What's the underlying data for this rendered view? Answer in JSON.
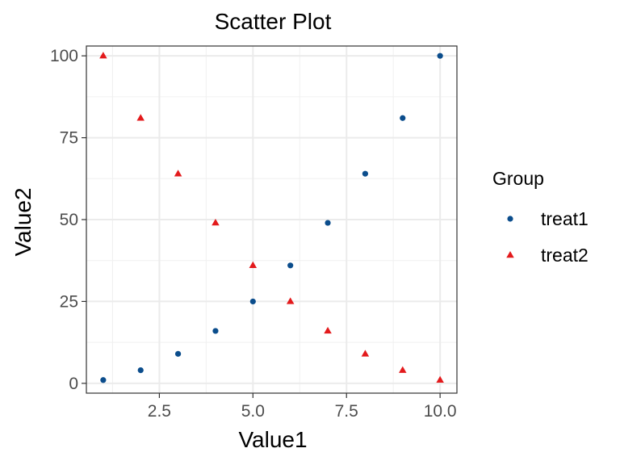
{
  "chart_data": {
    "type": "scatter",
    "title": "Scatter Plot",
    "xlabel": "Value1",
    "ylabel": "Value2",
    "xlim": [
      0.55,
      10.45
    ],
    "ylim": [
      -3,
      103
    ],
    "x_ticks": [
      2.5,
      5.0,
      7.5,
      10.0
    ],
    "x_tick_labels": [
      "2.5",
      "5.0",
      "7.5",
      "10.0"
    ],
    "y_ticks": [
      0,
      25,
      50,
      75,
      100
    ],
    "y_tick_labels": [
      "0",
      "25",
      "50",
      "75",
      "100"
    ],
    "grid": true,
    "legend": {
      "title": "Group",
      "placement": "right"
    },
    "series": [
      {
        "name": "treat1",
        "marker": "circle",
        "color": "#0b4d8c",
        "x": [
          1,
          2,
          3,
          4,
          5,
          6,
          7,
          8,
          9,
          10
        ],
        "y": [
          1,
          4,
          9,
          16,
          25,
          36,
          49,
          64,
          81,
          100
        ]
      },
      {
        "name": "treat2",
        "marker": "triangle",
        "color": "#e31a1c",
        "x": [
          1,
          2,
          3,
          4,
          5,
          6,
          7,
          8,
          9,
          10
        ],
        "y": [
          100,
          81,
          64,
          49,
          36,
          25,
          16,
          9,
          4,
          1
        ]
      }
    ]
  }
}
